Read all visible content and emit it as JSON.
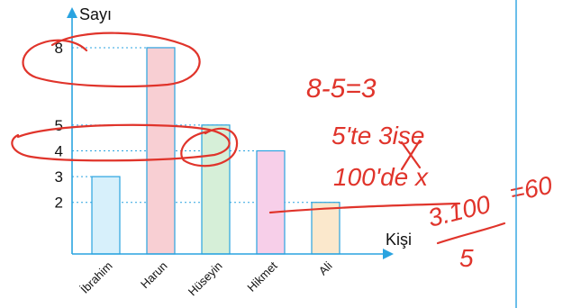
{
  "chart_data": {
    "type": "bar",
    "ylabel": "Sayı",
    "xlabel": "Kişi",
    "categories": [
      "İbrahim",
      "Harun",
      "Hüseyin",
      "Hikmet",
      "Ali"
    ],
    "values": [
      3,
      8,
      5,
      4,
      2
    ],
    "y_tick_labels": [
      2,
      3,
      4,
      5,
      8
    ],
    "y_axis_top_value": 9.5,
    "grid": "dotted guide lines at each bar height",
    "bar_fills": [
      "#d7f0fb",
      "#f8cfd3",
      "#d6efd8",
      "#f7cfe9",
      "#fbe8cc"
    ],
    "bar_stroke": "#2aa3e0",
    "axis_color": "#2aa3e0"
  },
  "annotations": {
    "ink_color": "#e0342b",
    "divider_color": "#2aa3e0",
    "lines": [
      "8-5=3",
      "5'te 3ise",
      "100'de x",
      "3.100",
      "5",
      "=60"
    ]
  }
}
